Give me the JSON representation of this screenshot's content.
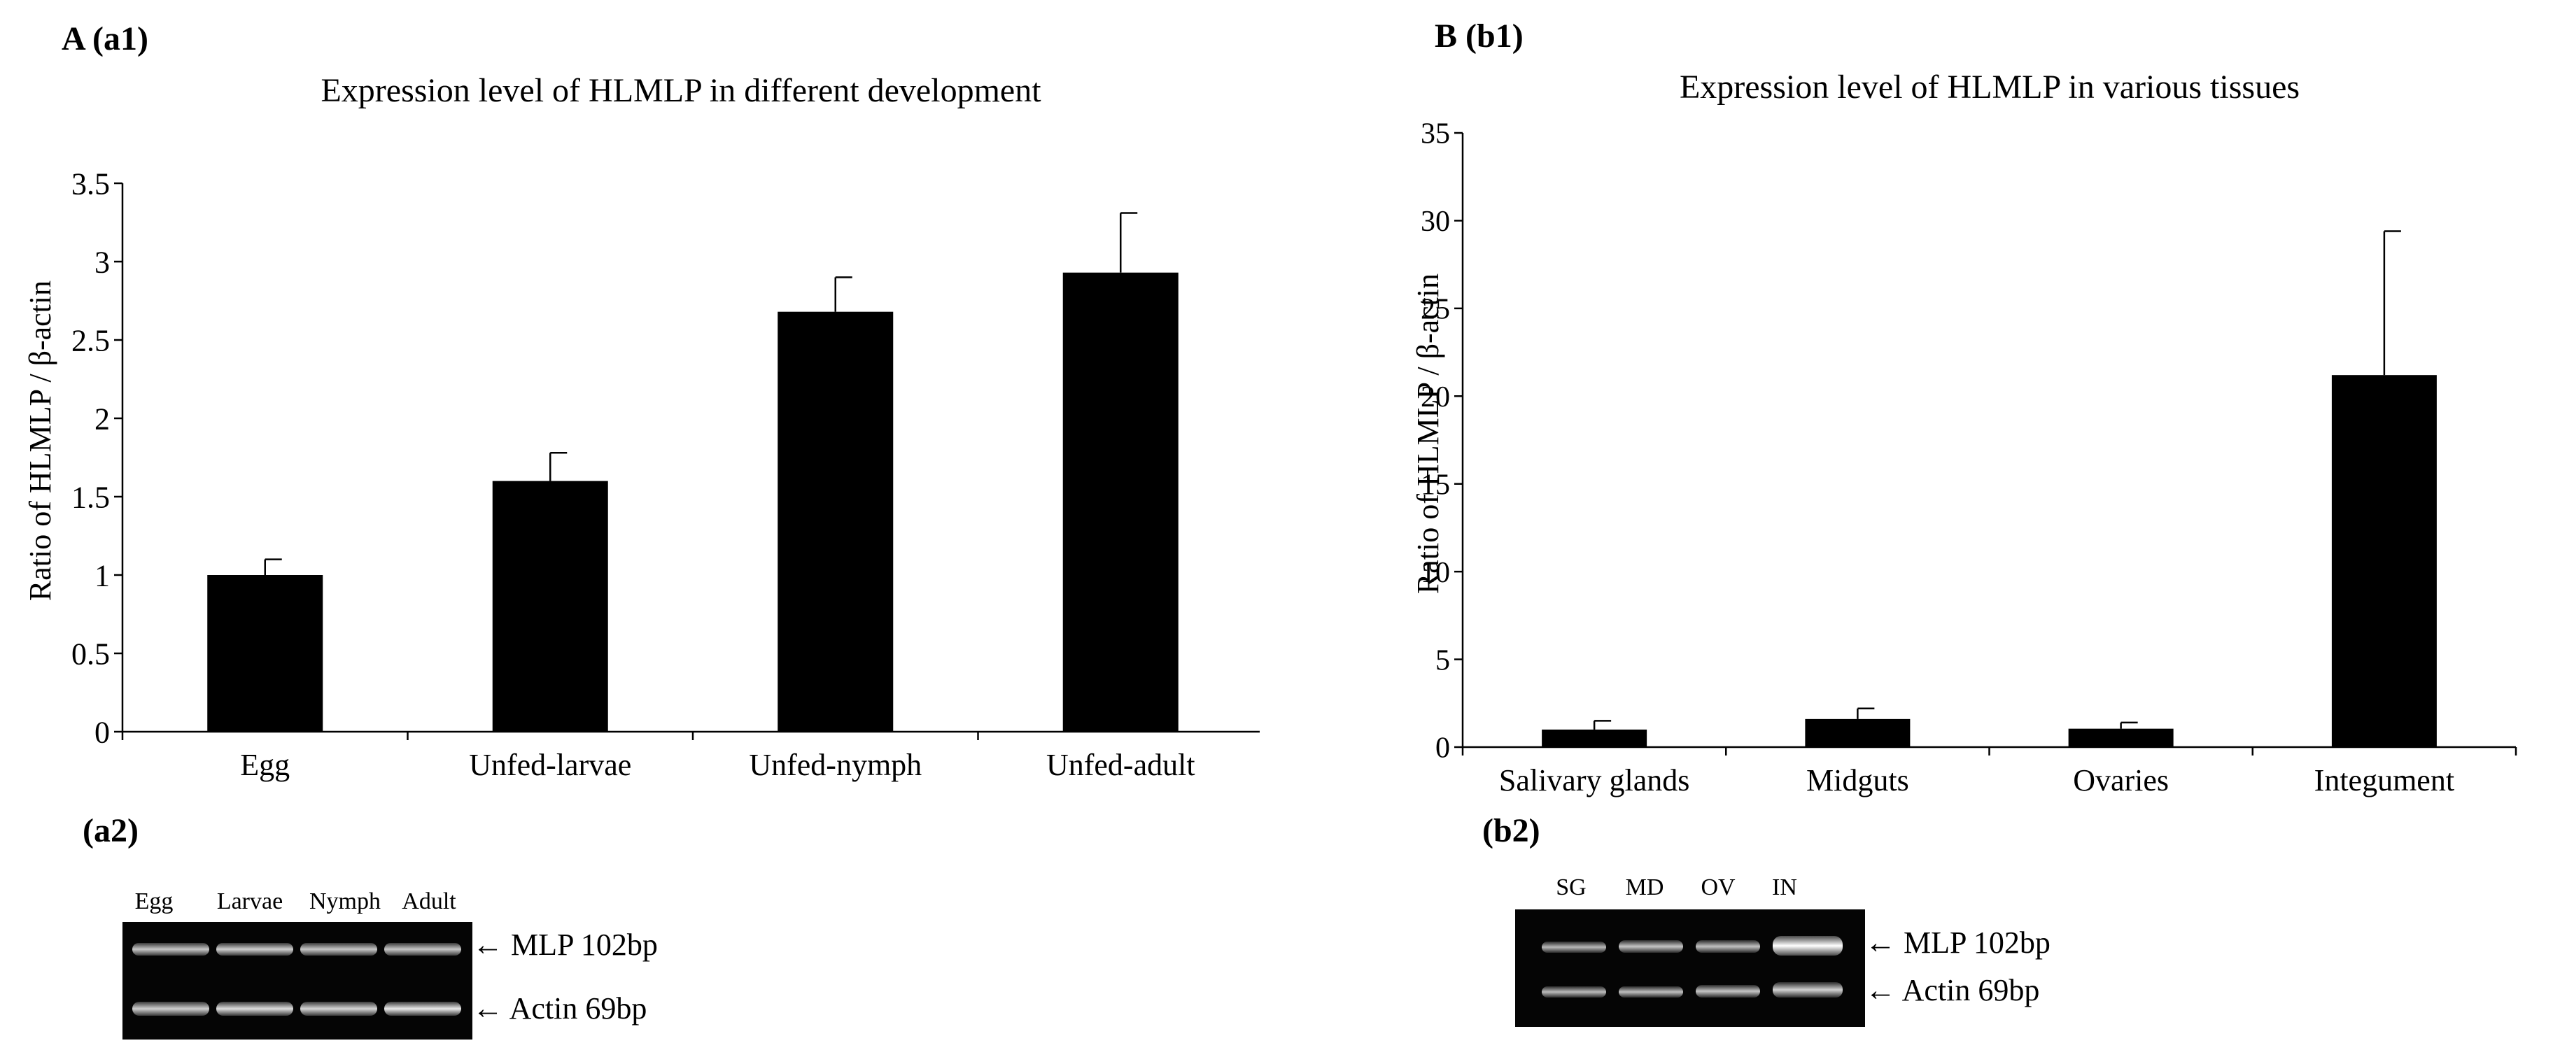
{
  "panels": {
    "a": {
      "label": "A (a1)",
      "sub_label": "(a2)",
      "gel": {
        "lanes": [
          "Egg",
          "Larvae",
          "Nymph",
          "Adult"
        ],
        "bands": [
          "MLP 102bp",
          "Actin 69bp"
        ],
        "arrow": "←"
      }
    },
    "b": {
      "label": "B (b1)",
      "sub_label": "(b2)",
      "gel": {
        "lanes": [
          "SG",
          "MD",
          "OV",
          "IN"
        ],
        "bands": [
          "MLP 102bp",
          "Actin 69bp"
        ],
        "arrow": "←"
      }
    }
  },
  "colors": {
    "bar": "#000000",
    "axis": "#000000",
    "gel_bg": "#050505",
    "band": "#cfcfcf"
  },
  "chart_data": [
    {
      "type": "bar",
      "title": "Expression level of HLMLP in different development",
      "xlabel": "",
      "ylabel": "Ratio of HLMLP / β-actin",
      "categories": [
        "Egg",
        "Unfed-larvae",
        "Unfed-nymph",
        "Unfed-adult"
      ],
      "values": [
        1.0,
        1.6,
        2.68,
        2.93
      ],
      "errors": [
        0.1,
        0.18,
        0.22,
        0.38
      ],
      "ylim": [
        0,
        3.5
      ],
      "yticks": [
        "0",
        "0.5",
        "1",
        "1.5",
        "2",
        "2.5",
        "3",
        "3.5"
      ],
      "grid": false,
      "legend": "none"
    },
    {
      "type": "bar",
      "title": "Expression level of HLMLP in various tissues",
      "xlabel": "",
      "ylabel": "Ratio of HLMLP / β-actin",
      "categories": [
        "Salivary glands",
        "Midguts",
        "Ovaries",
        "Integument"
      ],
      "values": [
        1.0,
        1.6,
        1.05,
        21.2
      ],
      "errors": [
        0.5,
        0.6,
        0.35,
        8.2
      ],
      "ylim": [
        0,
        35
      ],
      "yticks": [
        "0",
        "5",
        "10",
        "15",
        "20",
        "25",
        "30",
        "35"
      ],
      "grid": false,
      "legend": "none"
    }
  ]
}
